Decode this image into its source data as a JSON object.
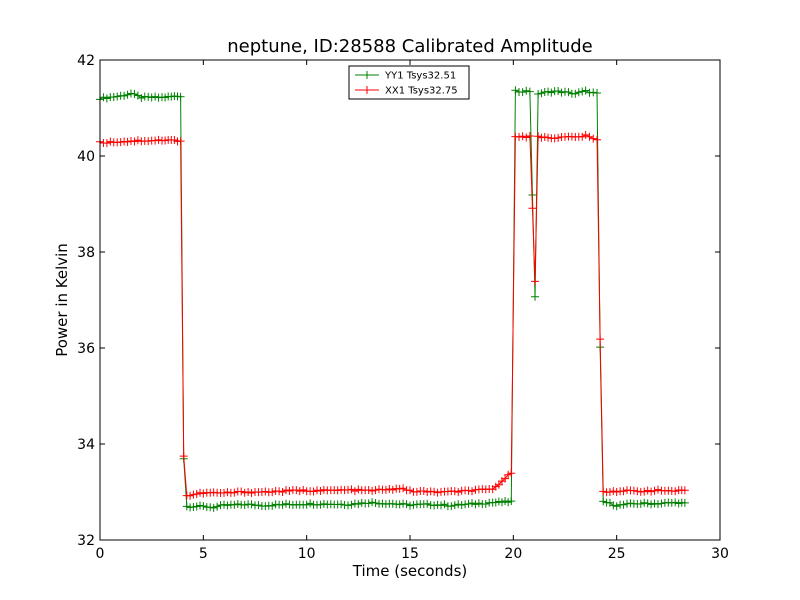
{
  "chart_data": {
    "type": "line",
    "title": "neptune, ID:28588 Calibrated Amplitude",
    "xlabel": "Time (seconds)",
    "ylabel": "Power in Kelvin",
    "xlim": [
      0,
      30
    ],
    "ylim": [
      32,
      42
    ],
    "xticks": [
      0,
      5,
      10,
      15,
      20,
      25,
      30
    ],
    "yticks": [
      32,
      34,
      36,
      38,
      40,
      42
    ],
    "grid": false,
    "legend_position": "upper center",
    "series": [
      {
        "name": "YY1 Tsys32.51",
        "color": "#008000",
        "marker": "+",
        "points": [
          [
            0,
            41.2
          ],
          [
            1,
            41.25
          ],
          [
            1.5,
            41.3
          ],
          [
            2,
            41.22
          ],
          [
            3,
            41.22
          ],
          [
            3.9,
            41.25
          ],
          [
            4.05,
            33.7
          ],
          [
            4.2,
            32.7
          ],
          [
            5,
            32.7
          ],
          [
            5.5,
            32.68
          ],
          [
            6,
            32.72
          ],
          [
            7,
            32.74
          ],
          [
            8,
            32.72
          ],
          [
            9,
            32.74
          ],
          [
            10,
            32.75
          ],
          [
            11,
            32.75
          ],
          [
            12,
            32.74
          ],
          [
            13,
            32.78
          ],
          [
            14,
            32.76
          ],
          [
            15,
            32.73
          ],
          [
            16,
            32.74
          ],
          [
            17,
            32.72
          ],
          [
            18,
            32.75
          ],
          [
            19,
            32.78
          ],
          [
            19.9,
            32.8
          ],
          [
            20.1,
            41.35
          ],
          [
            20.8,
            41.35
          ],
          [
            21.05,
            37.05
          ],
          [
            21.2,
            41.3
          ],
          [
            22,
            41.35
          ],
          [
            23,
            41.3
          ],
          [
            23.5,
            41.35
          ],
          [
            24.05,
            41.3
          ],
          [
            24.2,
            36
          ],
          [
            24.35,
            32.8
          ],
          [
            25,
            32.72
          ],
          [
            26,
            32.76
          ],
          [
            27,
            32.76
          ],
          [
            28,
            32.78
          ],
          [
            28.3,
            32.76
          ]
        ]
      },
      {
        "name": "XX1 Tsys32.75",
        "color": "#ff0000",
        "marker": "+",
        "points": [
          [
            0,
            40.28
          ],
          [
            1,
            40.3
          ],
          [
            2,
            40.32
          ],
          [
            3,
            40.33
          ],
          [
            3.9,
            40.32
          ],
          [
            4.05,
            33.75
          ],
          [
            4.2,
            32.92
          ],
          [
            5,
            32.98
          ],
          [
            6,
            32.98
          ],
          [
            7,
            33.0
          ],
          [
            8,
            33.0
          ],
          [
            9,
            33.02
          ],
          [
            10,
            33.03
          ],
          [
            11,
            33.03
          ],
          [
            12,
            33.04
          ],
          [
            13,
            33.03
          ],
          [
            14,
            33.05
          ],
          [
            14.5,
            33.08
          ],
          [
            15,
            33.02
          ],
          [
            16,
            33.0
          ],
          [
            17,
            33.0
          ],
          [
            18,
            33.03
          ],
          [
            19,
            33.05
          ],
          [
            19.9,
            33.4
          ],
          [
            20.1,
            40.42
          ],
          [
            20.8,
            40.4
          ],
          [
            21.05,
            37.4
          ],
          [
            21.2,
            40.4
          ],
          [
            22,
            40.38
          ],
          [
            23,
            40.4
          ],
          [
            23.5,
            40.42
          ],
          [
            24.05,
            40.33
          ],
          [
            24.2,
            36.2
          ],
          [
            24.35,
            33.0
          ],
          [
            25,
            33.02
          ],
          [
            26,
            33.02
          ],
          [
            27,
            33.03
          ],
          [
            28,
            33.02
          ],
          [
            28.3,
            33.02
          ]
        ]
      }
    ]
  }
}
